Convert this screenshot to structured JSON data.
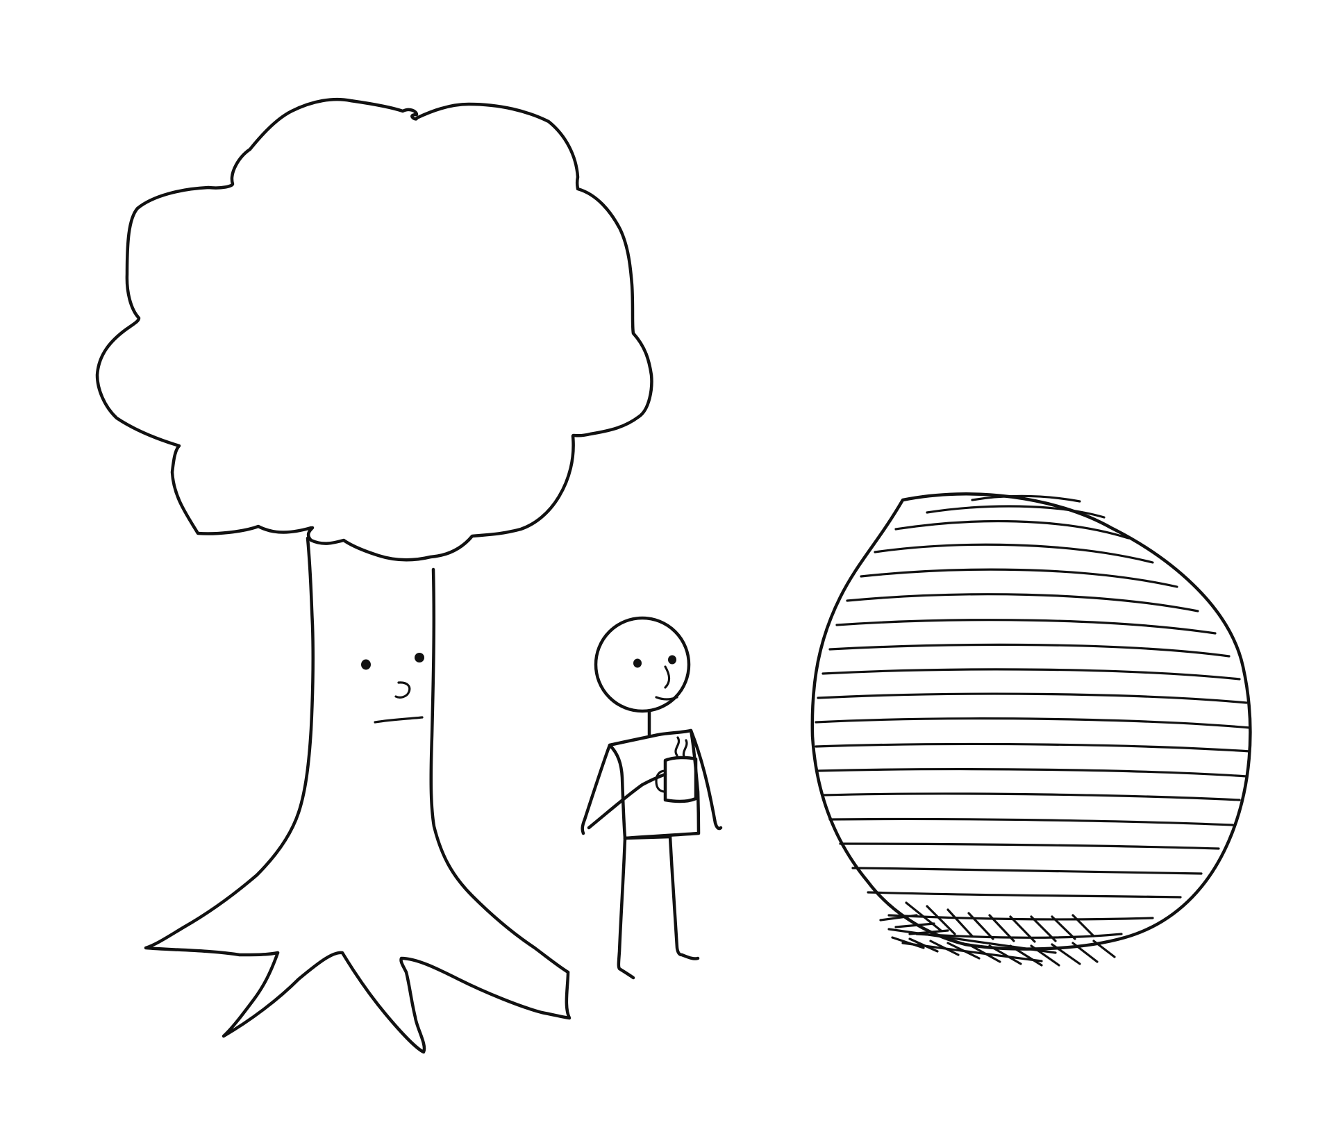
{
  "drawing": {
    "style": "hand-drawn-ink",
    "ink_color": "#111111",
    "background_color": "#ffffff",
    "figures": [
      {
        "name": "tree-with-face",
        "icon": "tree-icon"
      },
      {
        "name": "stick-figure-with-mug",
        "icon": "person-icon"
      },
      {
        "name": "striped-sphere",
        "icon": "sphere-icon"
      }
    ]
  }
}
